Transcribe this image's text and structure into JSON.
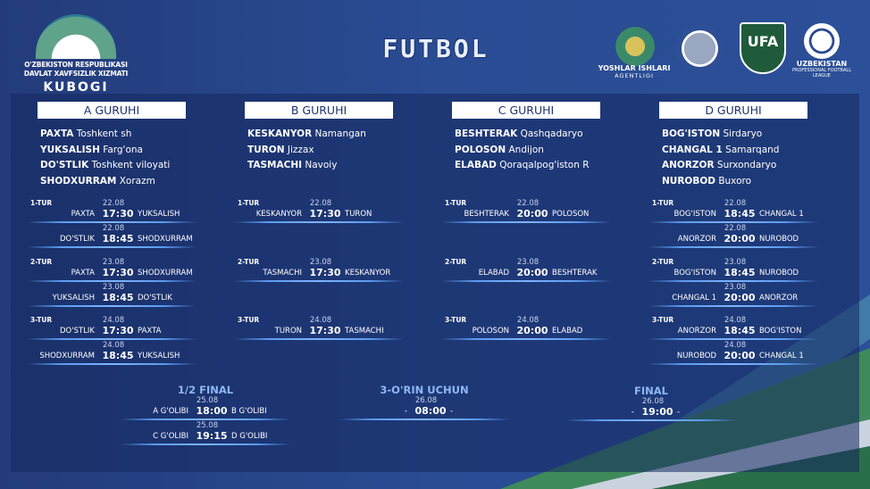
{
  "header": {
    "logo_lines": [
      "O'ZBEKISTON RESPUBLIKASI",
      "DAVLAT XAVFSIZLIK XIZMATI",
      "KUBOGI"
    ],
    "title": "FUTBOL",
    "sponsors": [
      {
        "name": "YOSHLAR ISHLARI",
        "sub": "AGENTLIGI"
      },
      {
        "name": "",
        "sub": ""
      },
      {
        "name": "UFA",
        "sub": ""
      },
      {
        "name": "UZBEKISTAN",
        "sub": "PROFESSIONAL FOOTBALL LEAGUE"
      }
    ]
  },
  "colors": {
    "background": "#2a4a90",
    "panel": "#1b336f",
    "header_box": "#ffffff",
    "header_text": "#1d3270",
    "line": "#5b9bf0",
    "green": "#3f8a5a"
  },
  "groups": [
    {
      "name": "A GURUHI",
      "teams": [
        [
          "PAXTA",
          "Toshkent sh"
        ],
        [
          "YUKSALISH",
          "Farg'ona"
        ],
        [
          "DO'STLIK",
          "Toshkent viloyati"
        ],
        [
          "SHODXURRAM",
          "Xorazm"
        ]
      ],
      "rounds": [
        {
          "label": "1-TUR",
          "matches": [
            {
              "date": "22.08",
              "home": "PAXTA",
              "time": "17:30",
              "away": "YUKSALISH"
            },
            {
              "date": "22.08",
              "home": "DO'STLIK",
              "time": "18:45",
              "away": "SHODXURRAM"
            }
          ]
        },
        {
          "label": "2-TUR",
          "matches": [
            {
              "date": "23.08",
              "home": "PAXTA",
              "time": "17:30",
              "away": "SHODXURRAM"
            },
            {
              "date": "23.08",
              "home": "YUKSALISH",
              "time": "18:45",
              "away": "DO'STLIK"
            }
          ]
        },
        {
          "label": "3-TUR",
          "matches": [
            {
              "date": "24.08",
              "home": "DO'STLIK",
              "time": "17:30",
              "away": "PAXTA"
            },
            {
              "date": "24.08",
              "home": "SHODXURRAM",
              "time": "18:45",
              "away": "YUKSALISH"
            }
          ]
        }
      ]
    },
    {
      "name": "B GURUHI",
      "teams": [
        [
          "KESKANYOR",
          "Namangan"
        ],
        [
          "TURON",
          "Jizzax"
        ],
        [
          "TASMACHI",
          "Navoiy"
        ]
      ],
      "rounds": [
        {
          "label": "1-TUR",
          "matches": [
            {
              "date": "22.08",
              "home": "KESKANYOR",
              "time": "17:30",
              "away": "TURON"
            }
          ]
        },
        {
          "label": "2-TUR",
          "matches": [
            {
              "date": "23.08",
              "home": "TASMACHI",
              "time": "17:30",
              "away": "KESKANYOR"
            }
          ]
        },
        {
          "label": "3-TUR",
          "matches": [
            {
              "date": "24.08",
              "home": "TURON",
              "time": "17:30",
              "away": "TASMACHI"
            }
          ]
        }
      ]
    },
    {
      "name": "C GURUHI",
      "teams": [
        [
          "BESHTERAK",
          "Qashqadaryo"
        ],
        [
          "POLOSON",
          "Andijon"
        ],
        [
          "ELABAD",
          "Qoraqalpog'iston R"
        ]
      ],
      "rounds": [
        {
          "label": "1-TUR",
          "matches": [
            {
              "date": "22.08",
              "home": "BESHTERAK",
              "time": "20:00",
              "away": "POLOSON"
            }
          ]
        },
        {
          "label": "2-TUR",
          "matches": [
            {
              "date": "23.08",
              "home": "ELABAD",
              "time": "20:00",
              "away": "BESHTERAK"
            }
          ]
        },
        {
          "label": "3-TUR",
          "matches": [
            {
              "date": "24.08",
              "home": "POLOSON",
              "time": "20:00",
              "away": "ELABAD"
            }
          ]
        }
      ]
    },
    {
      "name": "D GURUHI",
      "teams": [
        [
          "BOG'ISTON",
          "Sirdaryo"
        ],
        [
          "CHANGAL 1",
          "Samarqand"
        ],
        [
          "ANORZOR",
          "Surxondaryo"
        ],
        [
          "NUROBOD",
          "Buxoro"
        ]
      ],
      "rounds": [
        {
          "label": "1-TUR",
          "matches": [
            {
              "date": "22.08",
              "home": "BOG'ISTON",
              "time": "18:45",
              "away": "CHANGAL 1"
            },
            {
              "date": "22.08",
              "home": "ANORZOR",
              "time": "20:00",
              "away": "NUROBOD"
            }
          ]
        },
        {
          "label": "2-TUR",
          "matches": [
            {
              "date": "23.08",
              "home": "BOG'ISTON",
              "time": "18:45",
              "away": "NUROBOD"
            },
            {
              "date": "23.08",
              "home": "CHANGAL 1",
              "time": "20:00",
              "away": "ANORZOR"
            }
          ]
        },
        {
          "label": "3-TUR",
          "matches": [
            {
              "date": "24.08",
              "home": "ANORZOR",
              "time": "18:45",
              "away": "BOG'ISTON"
            },
            {
              "date": "24.08",
              "home": "NUROBOD",
              "time": "20:00",
              "away": "CHANGAL 1"
            }
          ]
        }
      ]
    }
  ],
  "playoffs": [
    {
      "title": "1/2 FINAL",
      "matches": [
        {
          "date": "25.08",
          "home": "A G'OLIBI",
          "time": "18:00",
          "away": "B G'OLIBI"
        },
        {
          "date": "25.08",
          "home": "C G'OLIBI",
          "time": "19:15",
          "away": "D G'OLIBI"
        }
      ]
    },
    {
      "title": "3-O'RIN UCHUN",
      "matches": [
        {
          "date": "26.08",
          "home": "-",
          "time": "08:00",
          "away": "-"
        }
      ]
    },
    {
      "title": "FINAL",
      "matches": [
        {
          "date": "26.08",
          "home": "-",
          "time": "19:00",
          "away": "-"
        }
      ]
    }
  ]
}
